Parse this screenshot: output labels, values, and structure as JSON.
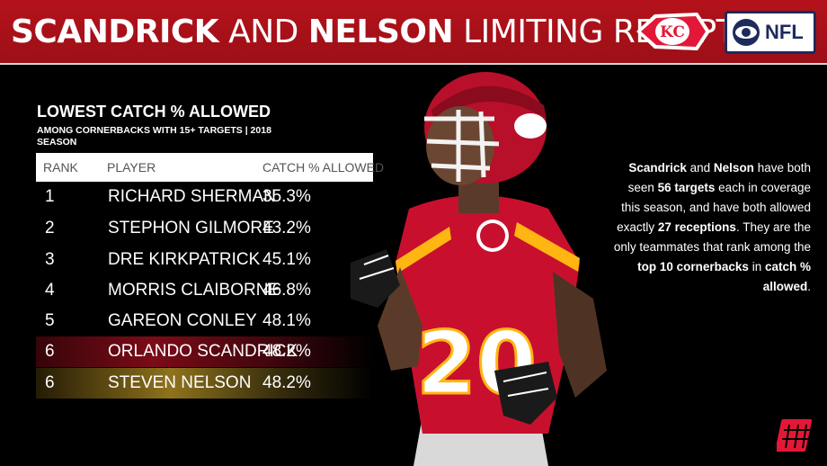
{
  "header": {
    "title_part1": "SCANDRICK",
    "title_part2": " AND ",
    "title_part3": "NELSON",
    "title_part4": " LIMITING RECEPTIONS",
    "nfl_text": "NFL"
  },
  "table": {
    "title": "LOWEST CATCH % ALLOWED",
    "subtitle": "AMONG CORNERBACKS WITH 15+ TARGETS | 2018 SEASON",
    "columns": [
      "RANK",
      "PLAYER",
      "CATCH % ALLOWED"
    ],
    "rows": [
      {
        "rank": "1",
        "player": "RICHARD SHERMAN",
        "pct": "35.3%"
      },
      {
        "rank": "2",
        "player": "STEPHON GILMORE",
        "pct": "43.2%"
      },
      {
        "rank": "3",
        "player": "DRE KIRKPATRICK",
        "pct": "45.1%"
      },
      {
        "rank": "4",
        "player": "MORRIS CLAIBORNE",
        "pct": "46.8%"
      },
      {
        "rank": "5",
        "player": "GAREON CONLEY",
        "pct": "48.1%"
      },
      {
        "rank": "6",
        "player": "ORLANDO SCANDRICK",
        "pct": "48.2%"
      },
      {
        "rank": "6",
        "player": "STEVEN NELSON",
        "pct": "48.2%"
      }
    ]
  },
  "blurb": {
    "s1": "Scandrick",
    "s2": " and ",
    "s3": "Nelson",
    "s4": " have both seen ",
    "s5": "56 targets",
    "s6": " each in coverage this season, and have both allowed exactly ",
    "s7": "27 receptions",
    "s8": ". They are the only teammates that rank among the ",
    "s9": "top 10 cornerbacks",
    "s10": " in ",
    "s11": "catch % allowed",
    "s12": "."
  },
  "colors": {
    "header_red": "#b5121b",
    "chiefs_red": "#e31837",
    "gold": "#ffb612"
  },
  "icons": [
    "chiefs-logo",
    "cbs-eye-icon",
    "pff-logo"
  ]
}
